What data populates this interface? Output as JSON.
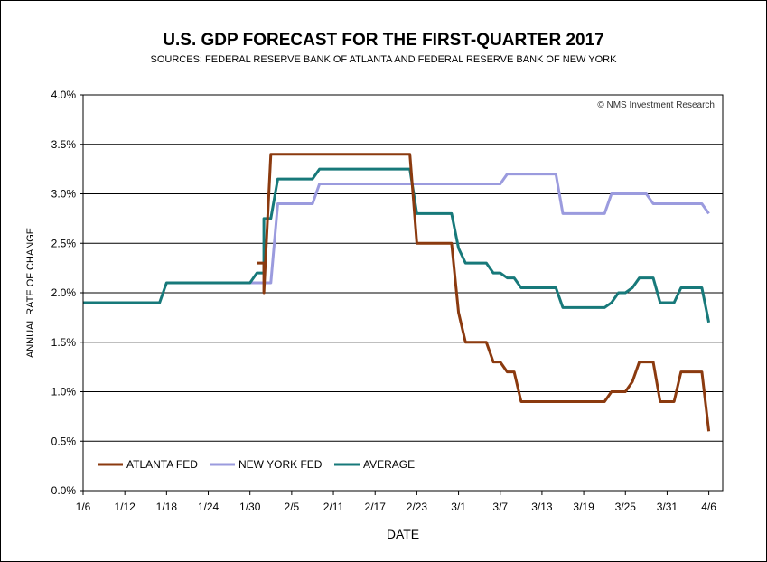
{
  "chart_data": {
    "type": "line",
    "title": "U.S. GDP FORECAST FOR THE FIRST-QUARTER 2017",
    "subtitle": "SOURCES: FEDERAL RESERVE BANK OF ATLANTA AND FEDERAL RESERVE BANK OF NEW YORK",
    "xlabel": "DATE",
    "ylabel": "ANNUAL RATE OF CHANGE",
    "credit": "© NMS Investment Research",
    "x_ticks": [
      "1/6",
      "1/12",
      "1/18",
      "1/24",
      "1/30",
      "2/5",
      "2/11",
      "2/17",
      "2/23",
      "3/1",
      "3/7",
      "3/13",
      "3/19",
      "3/25",
      "3/31",
      "4/6"
    ],
    "y_ticks": [
      "0.0%",
      "0.5%",
      "1.0%",
      "1.5%",
      "2.0%",
      "2.5%",
      "3.0%",
      "3.5%",
      "4.0%"
    ],
    "ylim": [
      0.0,
      4.0
    ],
    "grid": true,
    "legend_position": "bottom-left",
    "series": [
      {
        "name": "ATLANTA FED",
        "color": "#8B3A0F",
        "points": [
          [
            "2017-01-31",
            2.3
          ],
          [
            "2017-02-01",
            2.3
          ],
          [
            "2017-02-01",
            2.0
          ],
          [
            "2017-02-02",
            3.4
          ],
          [
            "2017-02-20",
            3.4
          ],
          [
            "2017-02-22",
            3.4
          ],
          [
            "2017-02-23",
            2.5
          ],
          [
            "2017-02-28",
            2.5
          ],
          [
            "2017-03-01",
            1.8
          ],
          [
            "2017-03-02",
            1.5
          ],
          [
            "2017-03-04",
            1.5
          ],
          [
            "2017-03-05",
            1.5
          ],
          [
            "2017-03-06",
            1.3
          ],
          [
            "2017-03-07",
            1.3
          ],
          [
            "2017-03-08",
            1.2
          ],
          [
            "2017-03-09",
            1.2
          ],
          [
            "2017-03-10",
            0.9
          ],
          [
            "2017-03-21",
            0.9
          ],
          [
            "2017-03-22",
            0.9
          ],
          [
            "2017-03-23",
            1.0
          ],
          [
            "2017-03-25",
            1.0
          ],
          [
            "2017-03-26",
            1.1
          ],
          [
            "2017-03-27",
            1.3
          ],
          [
            "2017-03-28",
            1.3
          ],
          [
            "2017-03-29",
            1.3
          ],
          [
            "2017-03-30",
            0.9
          ],
          [
            "2017-04-01",
            0.9
          ],
          [
            "2017-04-02",
            1.2
          ],
          [
            "2017-04-04",
            1.2
          ],
          [
            "2017-04-05",
            1.2
          ],
          [
            "2017-04-06",
            0.6
          ]
        ]
      },
      {
        "name": "NEW YORK FED",
        "color": "#9B9BDE",
        "points": [
          [
            "2017-01-30",
            2.1
          ],
          [
            "2017-02-02",
            2.1
          ],
          [
            "2017-02-03",
            2.9
          ],
          [
            "2017-02-08",
            2.9
          ],
          [
            "2017-02-09",
            3.1
          ],
          [
            "2017-02-21",
            3.1
          ],
          [
            "2017-02-22",
            3.1
          ],
          [
            "2017-03-07",
            3.1
          ],
          [
            "2017-03-08",
            3.2
          ],
          [
            "2017-03-15",
            3.2
          ],
          [
            "2017-03-16",
            2.8
          ],
          [
            "2017-03-21",
            2.8
          ],
          [
            "2017-03-22",
            2.8
          ],
          [
            "2017-03-23",
            3.0
          ],
          [
            "2017-03-28",
            3.0
          ],
          [
            "2017-03-29",
            2.9
          ],
          [
            "2017-04-04",
            2.9
          ],
          [
            "2017-04-05",
            2.9
          ],
          [
            "2017-04-06",
            2.8
          ]
        ]
      },
      {
        "name": "AVERAGE",
        "color": "#17797A",
        "points": [
          [
            "2017-01-06",
            1.9
          ],
          [
            "2017-01-16",
            1.9
          ],
          [
            "2017-01-17",
            1.9
          ],
          [
            "2017-01-18",
            2.1
          ],
          [
            "2017-01-30",
            2.1
          ],
          [
            "2017-01-31",
            2.2
          ],
          [
            "2017-02-01",
            2.2
          ],
          [
            "2017-02-01",
            2.75
          ],
          [
            "2017-02-02",
            2.75
          ],
          [
            "2017-02-03",
            3.15
          ],
          [
            "2017-02-08",
            3.15
          ],
          [
            "2017-02-09",
            3.25
          ],
          [
            "2017-02-21",
            3.25
          ],
          [
            "2017-02-22",
            3.25
          ],
          [
            "2017-02-23",
            2.8
          ],
          [
            "2017-02-28",
            2.8
          ],
          [
            "2017-03-01",
            2.45
          ],
          [
            "2017-03-02",
            2.3
          ],
          [
            "2017-03-05",
            2.3
          ],
          [
            "2017-03-06",
            2.2
          ],
          [
            "2017-03-07",
            2.2
          ],
          [
            "2017-03-08",
            2.15
          ],
          [
            "2017-03-09",
            2.15
          ],
          [
            "2017-03-10",
            2.05
          ],
          [
            "2017-03-15",
            2.05
          ],
          [
            "2017-03-16",
            1.85
          ],
          [
            "2017-03-21",
            1.85
          ],
          [
            "2017-03-22",
            1.85
          ],
          [
            "2017-03-23",
            1.9
          ],
          [
            "2017-03-24",
            2.0
          ],
          [
            "2017-03-25",
            2.0
          ],
          [
            "2017-03-26",
            2.05
          ],
          [
            "2017-03-27",
            2.15
          ],
          [
            "2017-03-28",
            2.15
          ],
          [
            "2017-03-29",
            2.15
          ],
          [
            "2017-03-30",
            1.9
          ],
          [
            "2017-04-01",
            1.9
          ],
          [
            "2017-04-02",
            2.05
          ],
          [
            "2017-04-04",
            2.05
          ],
          [
            "2017-04-05",
            2.05
          ],
          [
            "2017-04-06",
            1.7
          ]
        ]
      }
    ]
  }
}
